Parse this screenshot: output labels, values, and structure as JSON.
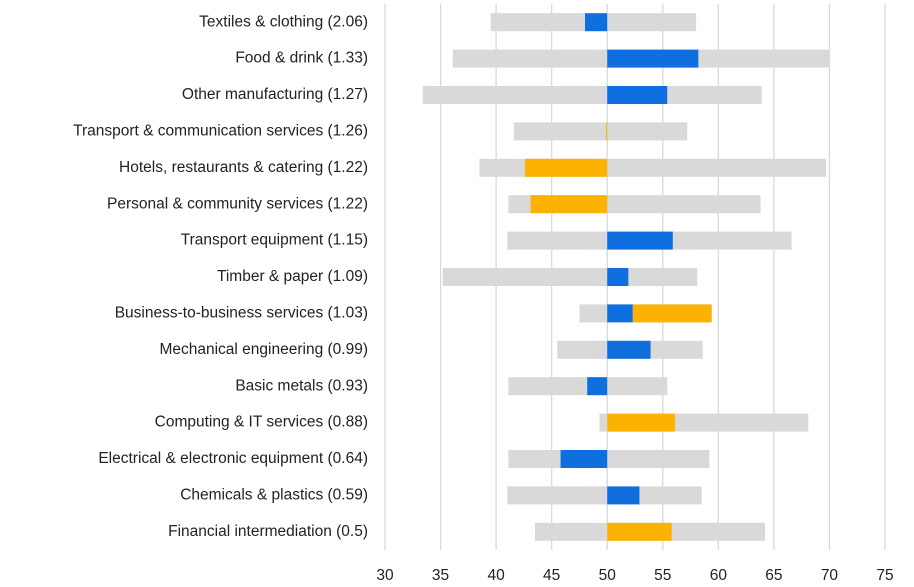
{
  "chart_data": {
    "type": "range-bar",
    "categories": [
      "Textiles & clothing (2.06)",
      "Food & drink (1.33)",
      "Other manufacturing (1.27)",
      "Transport & communication services (1.26)",
      "Hotels, restaurants & catering (1.22)",
      "Personal & community services (1.22)",
      "Transport equipment (1.15)",
      "Timber & paper (1.09)",
      "Business-to-business services (1.03)",
      "Mechanical engineering (0.99)",
      "Basic metals (0.93)",
      "Computing & IT services (0.88)",
      "Electrical & electronic equipment (0.64)",
      "Chemicals & plastics (0.59)",
      "Financial intermediation (0.5)"
    ],
    "baseline": 50,
    "range_low": [
      39.5,
      36.1,
      33.4,
      41.6,
      38.5,
      41.1,
      41.0,
      35.2,
      47.5,
      45.5,
      41.1,
      49.3,
      41.1,
      41.0,
      43.5
    ],
    "range_high": [
      58.0,
      70.0,
      63.9,
      57.2,
      69.7,
      63.8,
      66.6,
      58.1,
      59.4,
      58.6,
      55.4,
      68.1,
      59.2,
      58.5,
      64.2
    ],
    "range_color": "#d9d9d9",
    "series": [
      {
        "color": "#0f6fde",
        "values": [
          -2.0,
          8.2,
          5.4,
          null,
          null,
          null,
          5.9,
          1.9,
          2.3,
          3.9,
          -1.8,
          null,
          -4.2,
          2.9,
          null
        ]
      },
      {
        "color": "#fbb203",
        "values": [
          null,
          null,
          null,
          -0.1,
          -7.4,
          -6.9,
          null,
          null,
          7.1,
          null,
          null,
          6.1,
          null,
          null,
          5.8
        ]
      }
    ],
    "xlim": [
      30,
      75
    ],
    "xticks": [
      30,
      35,
      40,
      45,
      50,
      55,
      60,
      65,
      70,
      75
    ],
    "grid": true,
    "grid_color": "#d9d9d9"
  }
}
